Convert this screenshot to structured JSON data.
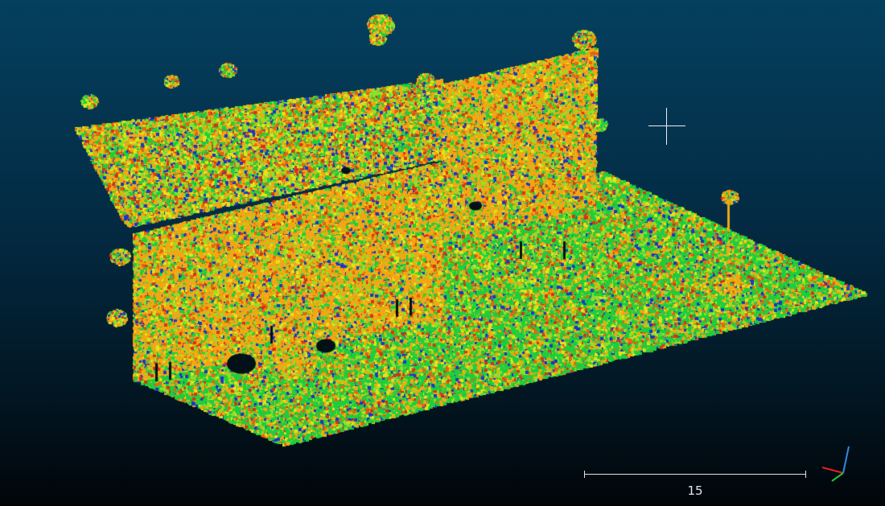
{
  "viewer": {
    "background_top_color": "#04405f",
    "background_bottom_color": "#010509",
    "colormap": [
      "#1a36c8",
      "#1ccf3c",
      "#8fe02a",
      "#e4e21a",
      "#f2a614",
      "#e8620f",
      "#d83214"
    ],
    "cursor_icon": "crosshair-icon"
  },
  "scale_bar": {
    "value": "15"
  },
  "axis_triad": {
    "x_color": "#e52121",
    "y_color": "#23c43a",
    "z_color": "#2a8ce8"
  }
}
